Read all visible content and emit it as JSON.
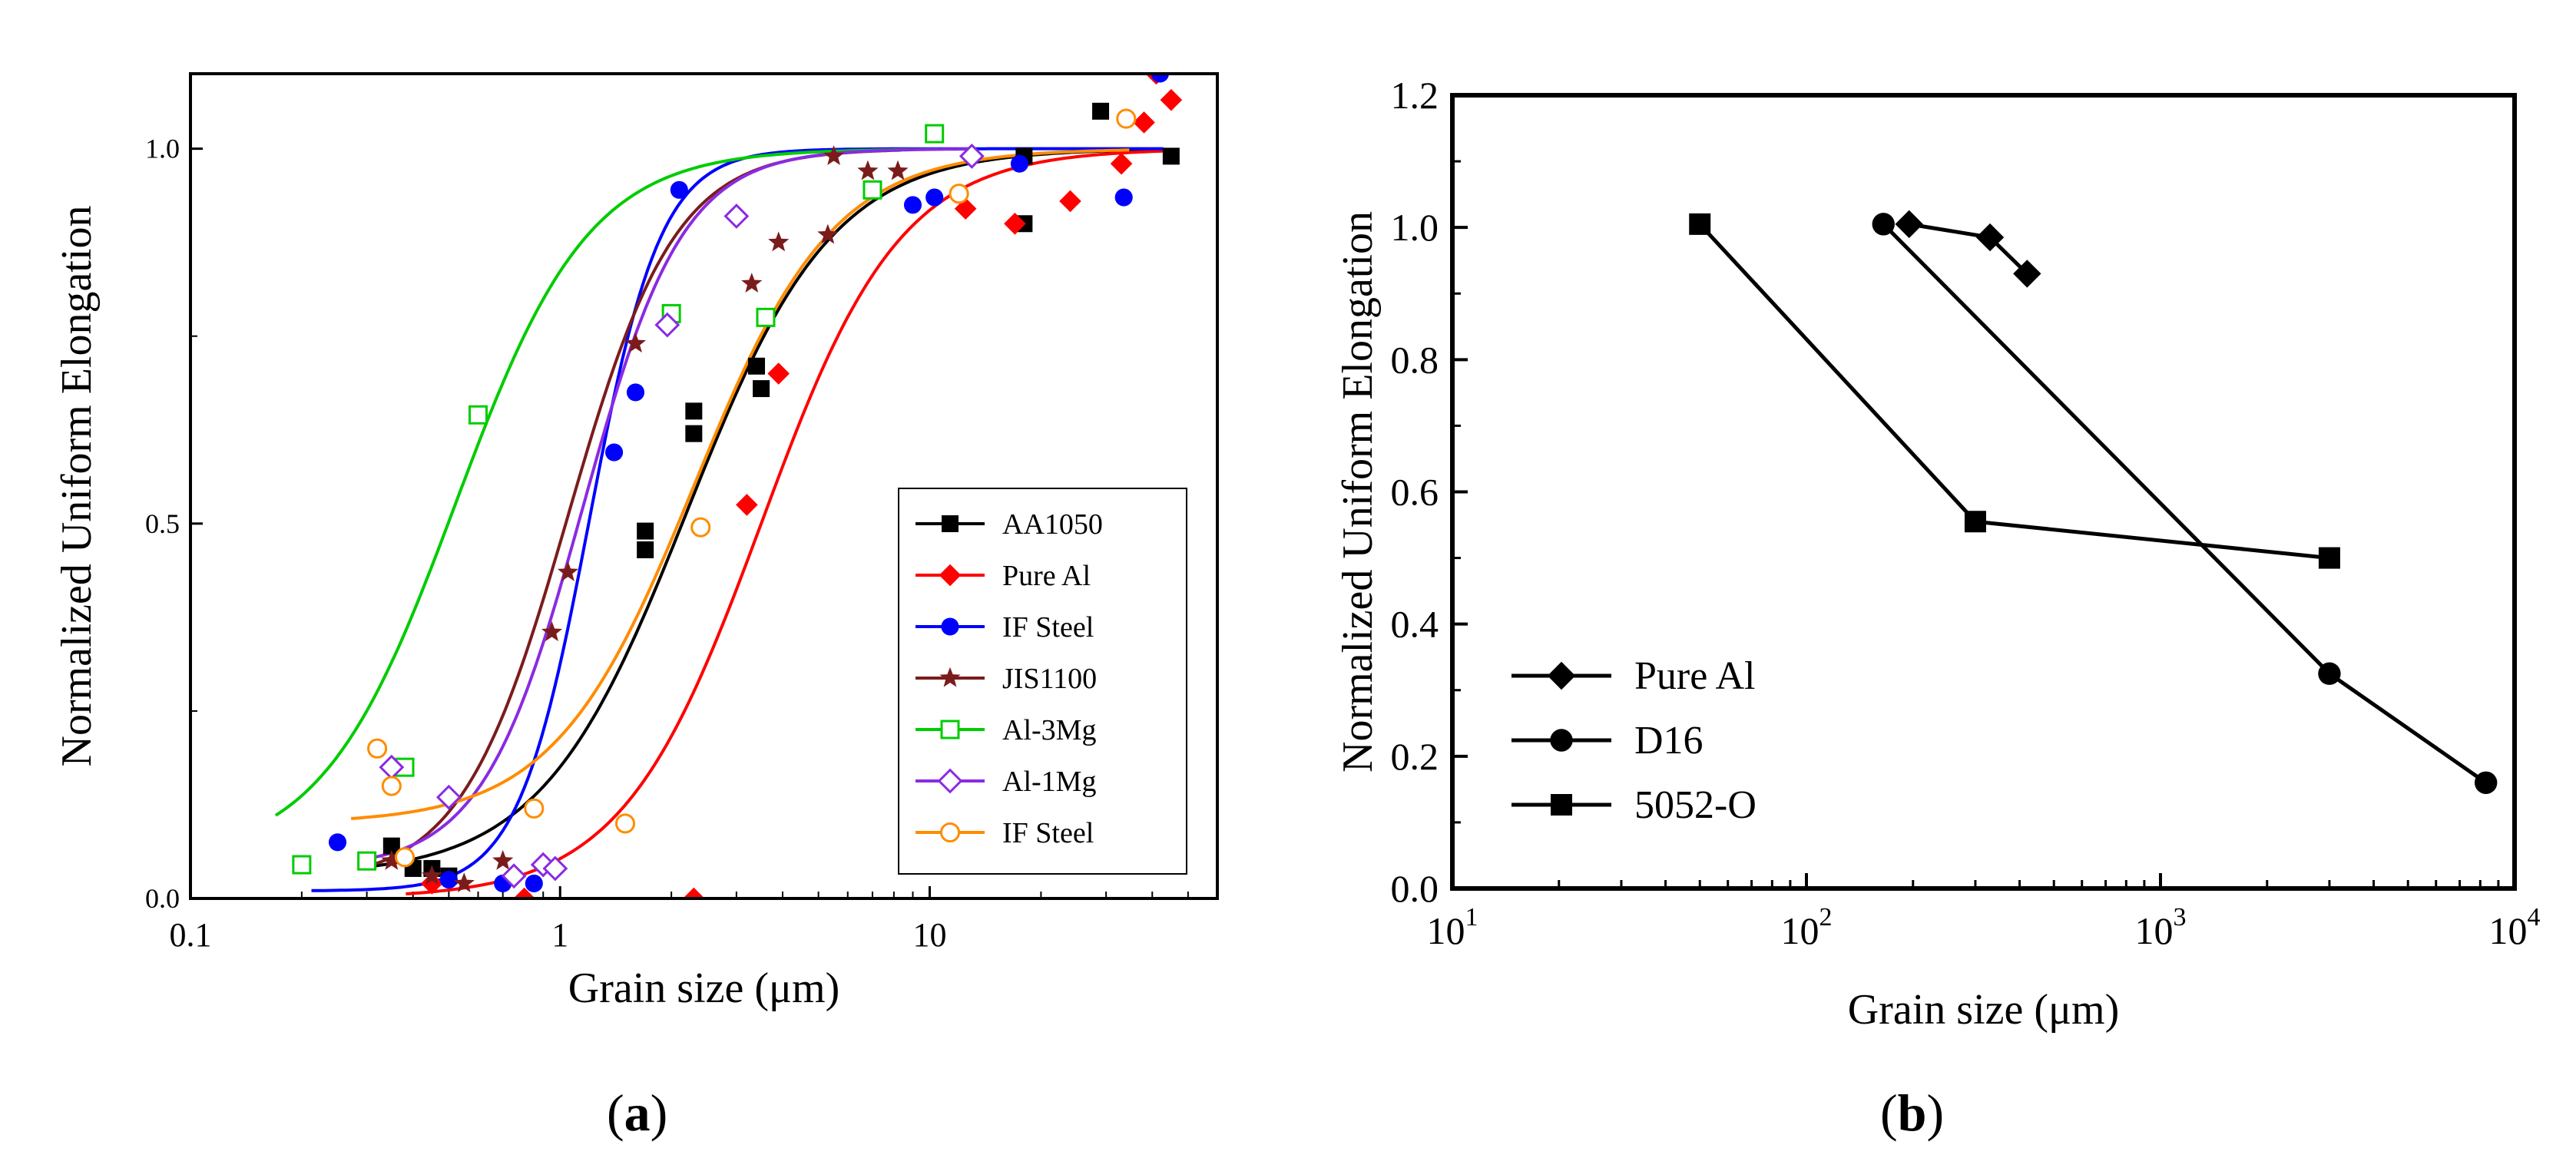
{
  "chart_data": [
    {
      "id": "a",
      "type": "scatter",
      "caption": "a",
      "xlabel": "Grain size (μm)",
      "ylabel": "Normalized Uniform Elongation",
      "xscale": "log",
      "xlim": [
        0.1,
        60
      ],
      "ylim": [
        0,
        1.1
      ],
      "xticks": [
        {
          "v": 0.1,
          "label": "0.1"
        },
        {
          "v": 1,
          "label": "1"
        },
        {
          "v": 10,
          "label": "10"
        }
      ],
      "yticks": [
        {
          "v": 0,
          "label": "0.0"
        },
        {
          "v": 0.5,
          "label": "0.5"
        },
        {
          "v": 1.0,
          "label": "1.0"
        }
      ],
      "legend_position": "bottom-right",
      "series": [
        {
          "name": "AA1050",
          "color": "#000000",
          "marker": "square-filled",
          "points": [
            [
              0.35,
              0.07
            ],
            [
              0.4,
              0.04
            ],
            [
              0.45,
              0.04
            ],
            [
              0.5,
              0.03
            ],
            [
              1.7,
              0.49
            ],
            [
              1.7,
              0.465
            ],
            [
              2.3,
              0.62
            ],
            [
              2.3,
              0.65
            ],
            [
              3.4,
              0.71
            ],
            [
              3.5,
              0.68
            ],
            [
              18,
              0.9
            ],
            [
              18,
              0.99
            ],
            [
              29,
              1.05
            ],
            [
              45,
              0.99
            ]
          ],
          "curve": {
            "x0": 2.2,
            "k": 2.2,
            "ymin": 0.03,
            "ymax": 1.0
          }
        },
        {
          "name": "Pure Al",
          "color": "#ff0000",
          "marker": "diamond-filled",
          "points": [
            [
              0.45,
              0.02
            ],
            [
              0.8,
              0.0
            ],
            [
              2.3,
              0.0
            ],
            [
              3.2,
              0.525
            ],
            [
              3.9,
              0.7
            ],
            [
              12.5,
              0.92
            ],
            [
              17,
              0.9
            ],
            [
              24,
              0.93
            ],
            [
              33,
              0.98
            ],
            [
              38,
              1.035
            ],
            [
              41,
              1.1
            ],
            [
              45,
              1.065
            ]
          ],
          "curve": {
            "x0": 3.5,
            "k": 2.3,
            "ymin": 0.0,
            "ymax": 1.0
          }
        },
        {
          "name": "IF Steel",
          "color": "#0000ff",
          "marker": "circle-filled",
          "points": [
            [
              0.25,
              0.075
            ],
            [
              0.5,
              0.025
            ],
            [
              0.7,
              0.02
            ],
            [
              0.85,
              0.02
            ],
            [
              1.4,
              0.595
            ],
            [
              1.6,
              0.675
            ],
            [
              2.1,
              0.945
            ],
            [
              9,
              0.925
            ],
            [
              10.3,
              0.935
            ],
            [
              17.5,
              0.98
            ],
            [
              33.5,
              0.935
            ],
            [
              42,
              1.1
            ]
          ],
          "curve": {
            "x0": 1.2,
            "k": 4.5,
            "ymin": 0.01,
            "ymax": 1.0
          }
        },
        {
          "name": "JIS1100",
          "color": "#7b1c1c",
          "marker": "star-filled",
          "points": [
            [
              0.35,
              0.05
            ],
            [
              0.45,
              0.03
            ],
            [
              0.55,
              0.02
            ],
            [
              0.7,
              0.05
            ],
            [
              0.95,
              0.355
            ],
            [
              1.05,
              0.435
            ],
            [
              1.6,
              0.74
            ],
            [
              3.3,
              0.82
            ],
            [
              3.9,
              0.875
            ],
            [
              5.3,
              0.885
            ],
            [
              5.5,
              0.99
            ],
            [
              6.8,
              0.97
            ],
            [
              8.2,
              0.97
            ]
          ],
          "curve": {
            "x0": 1.05,
            "k": 3.0,
            "ymin": 0.02,
            "ymax": 1.0
          }
        },
        {
          "name": "Al-3Mg",
          "color": "#00cc00",
          "marker": "square-open",
          "points": [
            [
              0.2,
              0.045
            ],
            [
              0.3,
              0.05
            ],
            [
              0.38,
              0.175
            ],
            [
              0.6,
              0.645
            ],
            [
              2.0,
              0.78
            ],
            [
              3.6,
              0.775
            ],
            [
              7.0,
              0.945
            ],
            [
              10.3,
              1.02
            ]
          ],
          "curve": {
            "x0": 0.52,
            "k": 2.4,
            "ymin": 0.05,
            "ymax": 1.0
          }
        },
        {
          "name": "Al-1Mg",
          "color": "#8a2be2",
          "marker": "diamond-open",
          "points": [
            [
              0.35,
              0.175
            ],
            [
              0.5,
              0.135
            ],
            [
              0.75,
              0.03
            ],
            [
              0.9,
              0.045
            ],
            [
              0.97,
              0.04
            ],
            [
              1.95,
              0.765
            ],
            [
              3.0,
              0.91
            ],
            [
              13,
              0.99
            ]
          ],
          "curve": {
            "x0": 1.15,
            "k": 3.2,
            "ymin": 0.04,
            "ymax": 1.0
          }
        },
        {
          "name": "IF Steel",
          "color": "#ff8c00",
          "marker": "circle-open",
          "points": [
            [
              0.32,
              0.2
            ],
            [
              0.35,
              0.15
            ],
            [
              0.38,
              0.055
            ],
            [
              0.85,
              0.12
            ],
            [
              1.5,
              0.1
            ],
            [
              2.4,
              0.495
            ],
            [
              12,
              0.94
            ],
            [
              34,
              1.04
            ]
          ],
          "curve": {
            "x0": 2.3,
            "k": 2.3,
            "ymin": 0.1,
            "ymax": 1.0
          }
        }
      ]
    },
    {
      "id": "b",
      "type": "line",
      "caption": "b",
      "xlabel": "Grain size (μm)",
      "ylabel": "Normalized Uniform Elongation",
      "xscale": "log",
      "xlim": [
        10,
        10000
      ],
      "ylim": [
        0,
        1.2
      ],
      "xticks": [
        {
          "v": 10,
          "base": "10",
          "exp": "1"
        },
        {
          "v": 100,
          "base": "10",
          "exp": "2"
        },
        {
          "v": 1000,
          "base": "10",
          "exp": "3"
        },
        {
          "v": 10000,
          "base": "10",
          "exp": "4"
        }
      ],
      "yticks": [
        {
          "v": 0.0,
          "label": "0.0"
        },
        {
          "v": 0.2,
          "label": "0.2"
        },
        {
          "v": 0.4,
          "label": "0.4"
        },
        {
          "v": 0.6,
          "label": "0.6"
        },
        {
          "v": 0.8,
          "label": "0.8"
        },
        {
          "v": 1.0,
          "label": "1.0"
        },
        {
          "v": 1.2,
          "label": "1.2"
        }
      ],
      "legend_position": "bottom-left",
      "series": [
        {
          "name": "Pure Al",
          "color": "#000000",
          "marker": "diamond-filled",
          "points": [
            [
              195,
              1.005
            ],
            [
              330,
              0.985
            ],
            [
              420,
              0.93
            ]
          ]
        },
        {
          "name": "D16",
          "color": "#000000",
          "marker": "circle-filled",
          "points": [
            [
              165,
              1.005
            ],
            [
              3000,
              0.325
            ],
            [
              8300,
              0.16
            ]
          ]
        },
        {
          "name": "5052-O",
          "color": "#000000",
          "marker": "square-filled",
          "points": [
            [
              50,
              1.005
            ],
            [
              300,
              0.555
            ],
            [
              3000,
              0.5
            ]
          ]
        }
      ]
    }
  ]
}
